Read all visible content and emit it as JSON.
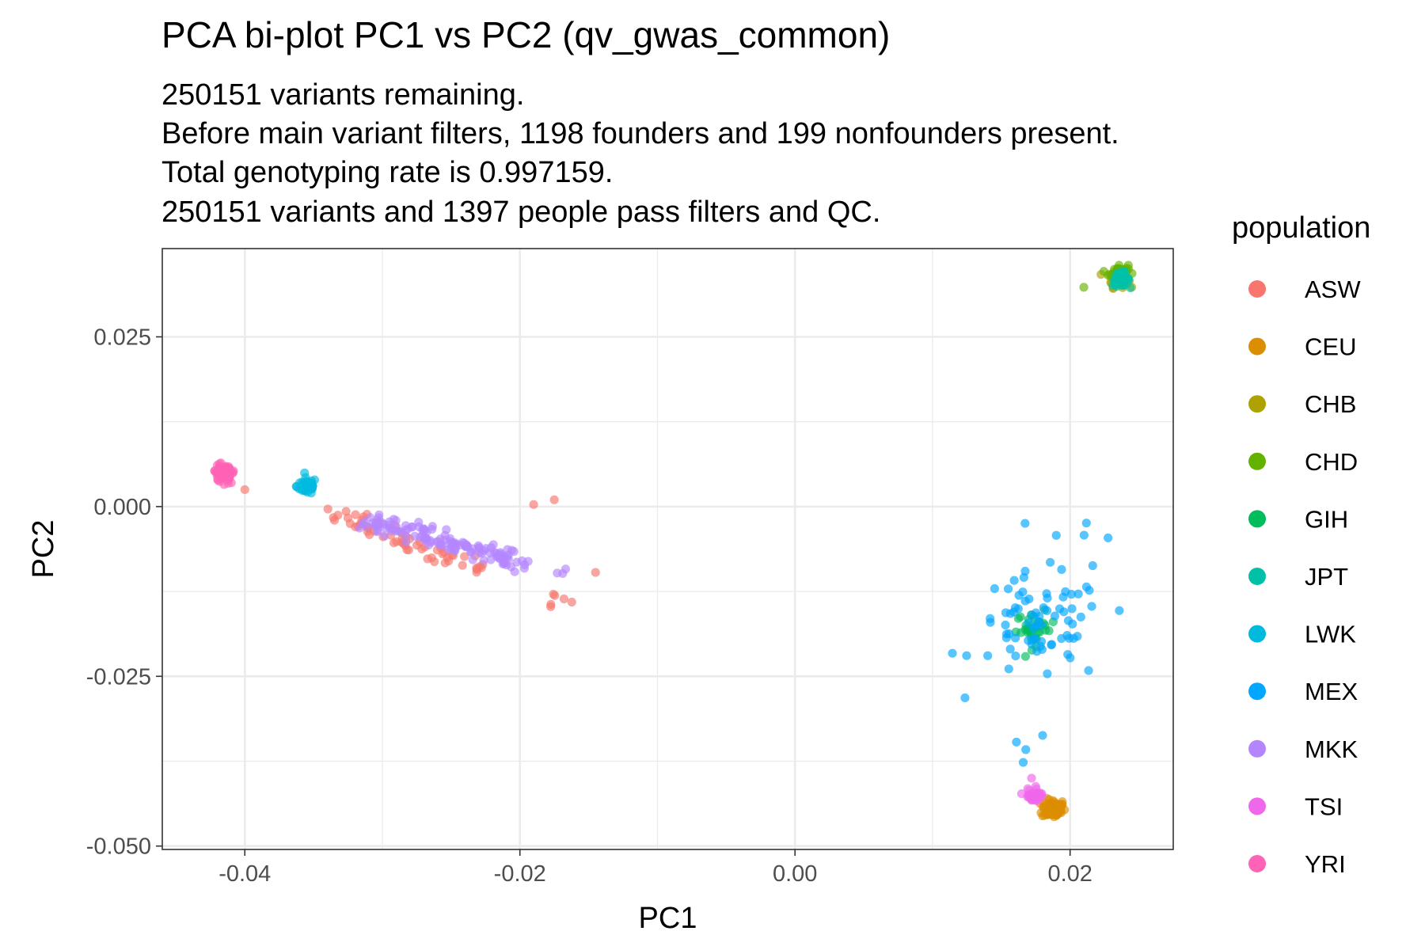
{
  "chart_data": {
    "type": "scatter",
    "title": "PCA bi-plot PC1 vs PC2 (qv_gwas_common)",
    "subtitle": [
      "250151 variants remaining.",
      "Before main variant filters, 1198 founders and 199 nonfounders present.",
      "Total genotyping rate is 0.997159.",
      "250151 variants and 1397 people pass filters and QC."
    ],
    "xlabel": "PC1",
    "ylabel": "PC2",
    "xlim": [
      -0.046,
      0.0275
    ],
    "ylim": [
      -0.0505,
      0.038
    ],
    "x_ticks": [
      -0.04,
      -0.02,
      0.0,
      0.02
    ],
    "x_tick_labels": [
      "-0.04",
      "-0.02",
      "0.00",
      "0.02"
    ],
    "y_ticks": [
      -0.05,
      -0.025,
      0.0,
      0.025
    ],
    "y_tick_labels": [
      "-0.050",
      "-0.025",
      "0.000",
      "0.025"
    ],
    "grid": true,
    "legend": {
      "title": "population",
      "position": "right"
    },
    "series": [
      {
        "name": "ASW",
        "color": "#F8766D",
        "clusters": [
          {
            "line": [
              [
                -0.0345,
                0.0
              ],
              [
                -0.0225,
                -0.0095
              ]
            ],
            "n": 60,
            "spread": 0.0008
          },
          {
            "center": [
              -0.04,
              0.0025
            ],
            "n": 1,
            "spread": 0.0
          },
          {
            "center": [
              -0.019,
              0.0003
            ],
            "n": 1,
            "spread": 0.0
          },
          {
            "center": [
              -0.0175,
              0.001
            ],
            "n": 1,
            "spread": 0.0
          },
          {
            "center": [
              -0.0145,
              -0.0097
            ],
            "n": 1,
            "spread": 0.0
          },
          {
            "center": [
              -0.0175,
              -0.0135
            ],
            "n": 6,
            "spread": 0.001
          }
        ]
      },
      {
        "name": "CEU",
        "color": "#DB8E00",
        "clusters": [
          {
            "center": [
              0.0188,
              -0.0445
            ],
            "n": 80,
            "spread": 0.0007
          }
        ]
      },
      {
        "name": "CHB",
        "color": "#AEA200",
        "clusters": [
          {
            "center": [
              0.0235,
              0.0335
            ],
            "n": 45,
            "spread": 0.0006
          }
        ]
      },
      {
        "name": "CHD",
        "color": "#64B200",
        "clusters": [
          {
            "center": [
              0.0235,
              0.0345
            ],
            "n": 40,
            "spread": 0.0006
          },
          {
            "center": [
              0.021,
              0.0323
            ],
            "n": 1,
            "spread": 0.0
          }
        ]
      },
      {
        "name": "GIH",
        "color": "#00BD5C",
        "clusters": [
          {
            "center": [
              0.0175,
              -0.018
            ],
            "n": 35,
            "spread": 0.0012
          }
        ]
      },
      {
        "name": "JPT",
        "color": "#00C1A7",
        "clusters": [
          {
            "center": [
              0.0237,
              0.0335
            ],
            "n": 50,
            "spread": 0.0005
          }
        ]
      },
      {
        "name": "LWK",
        "color": "#00BADE",
        "clusters": [
          {
            "center": [
              -0.0355,
              0.003
            ],
            "n": 50,
            "spread": 0.0006
          }
        ]
      },
      {
        "name": "MEX",
        "color": "#00A6FF",
        "clusters": [
          {
            "center": [
              0.0178,
              -0.018
            ],
            "n": 75,
            "spread": 0.004
          },
          {
            "center": [
              0.021,
              -0.005
            ],
            "n": 7,
            "spread": 0.0025
          },
          {
            "center": [
              0.0172,
              -0.036
            ],
            "n": 4,
            "spread": 0.0012
          }
        ]
      },
      {
        "name": "MKK",
        "color": "#B385FF",
        "clusters": [
          {
            "line": [
              [
                -0.0315,
                -0.002
              ],
              [
                -0.0195,
                -0.0085
              ]
            ],
            "n": 130,
            "spread": 0.0007
          },
          {
            "center": [
              -0.017,
              -0.009
            ],
            "n": 3,
            "spread": 0.0005
          }
        ]
      },
      {
        "name": "TSI",
        "color": "#EF67EB",
        "clusters": [
          {
            "center": [
              0.0175,
              -0.0425
            ],
            "n": 35,
            "spread": 0.0006
          },
          {
            "center": [
              0.0172,
              -0.04
            ],
            "n": 1,
            "spread": 0.0
          }
        ]
      },
      {
        "name": "YRI",
        "color": "#FF63B6",
        "clusters": [
          {
            "center": [
              -0.0415,
              0.005
            ],
            "n": 80,
            "spread": 0.0006
          }
        ]
      }
    ]
  }
}
